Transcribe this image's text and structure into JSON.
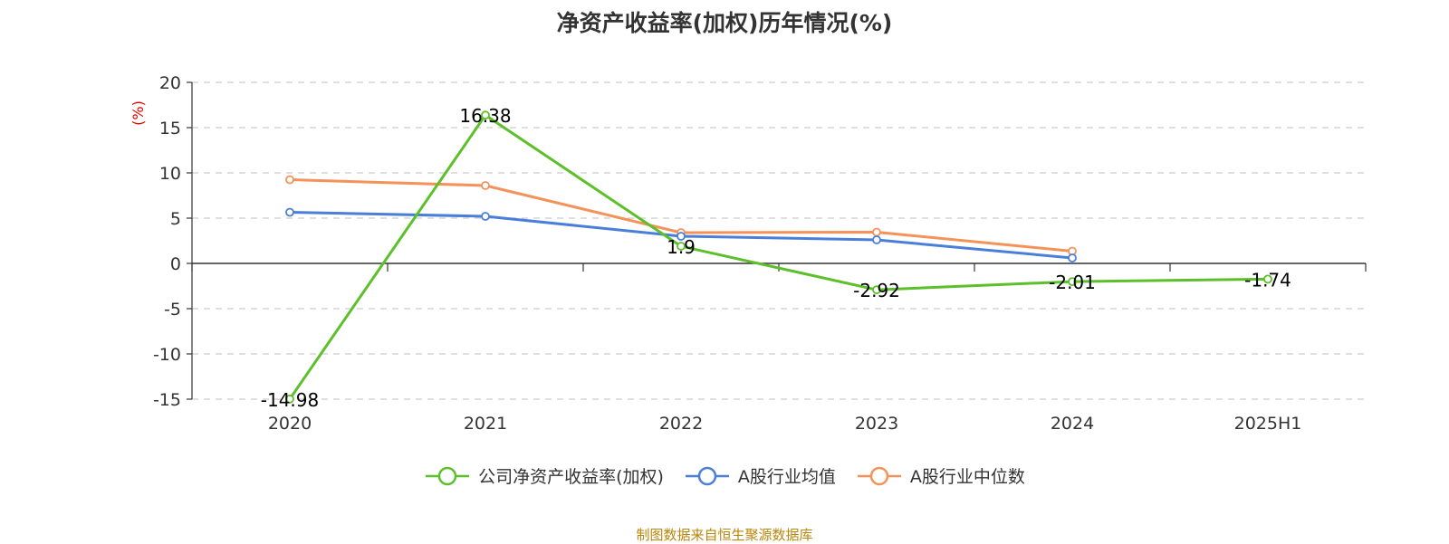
{
  "chart_data": {
    "type": "line",
    "title": "净资产收益率(加权)历年情况(%)",
    "ylabel": "(%)",
    "categories": [
      "2020",
      "2021",
      "2022",
      "2023",
      "2024",
      "2025H1"
    ],
    "ylim": [
      -15,
      20
    ],
    "yticks": [
      -15,
      -10,
      -5,
      0,
      5,
      10,
      15,
      20
    ],
    "grid": true,
    "legend_position": "bottom",
    "series": [
      {
        "name": "公司净资产收益率(加权)",
        "color": "#5cc02b",
        "values": [
          -14.98,
          16.38,
          1.9,
          -2.92,
          -2.01,
          -1.74
        ],
        "labels": [
          "-14.98",
          "16.38",
          "1.9",
          "-2.92",
          "-2.01",
          "-1.74"
        ]
      },
      {
        "name": "A股行业均值",
        "color": "#4a7fd9",
        "values": [
          5.65,
          5.2,
          3.0,
          2.6,
          0.6,
          null
        ]
      },
      {
        "name": "A股行业中位数",
        "color": "#f5925a",
        "values": [
          9.25,
          8.6,
          3.4,
          3.45,
          1.35,
          null
        ]
      }
    ]
  },
  "source": "制图数据来自恒生聚源数据库"
}
